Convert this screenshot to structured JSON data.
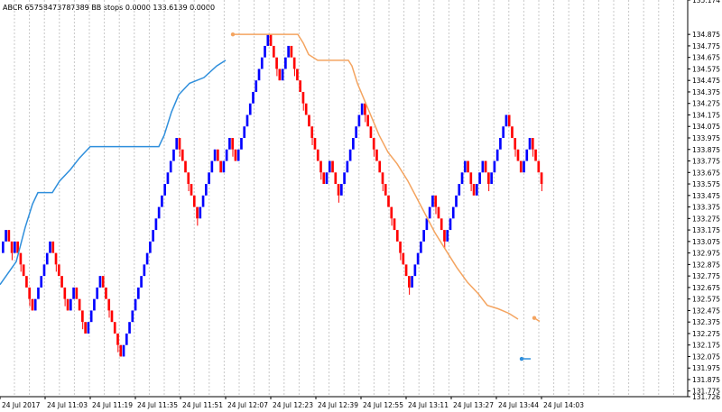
{
  "header": {
    "symbol": "ABCR 65758473787389",
    "indicator": "BB stops 0.0000 133.6139 0.0000"
  },
  "colors": {
    "background": "#ffffff",
    "grid": "#c8c8c8",
    "bull": "#0000ff",
    "bear": "#ff0000",
    "stop_up": "#2f8fdc",
    "stop_down": "#f4a460",
    "axis_text": "#000000"
  },
  "chart_data": {
    "type": "line",
    "title": "",
    "ylim": [
      131.726,
      135.174
    ],
    "y_ticks": [
      "135.174",
      "134.875",
      "134.775",
      "134.675",
      "134.575",
      "134.475",
      "134.375",
      "134.275",
      "134.175",
      "134.075",
      "133.975",
      "133.875",
      "133.775",
      "133.675",
      "133.575",
      "133.475",
      "133.375",
      "133.275",
      "133.175",
      "133.075",
      "132.975",
      "132.875",
      "132.775",
      "132.675",
      "132.575",
      "132.475",
      "132.375",
      "132.275",
      "132.175",
      "132.075",
      "131.975",
      "131.875",
      "131.775",
      "131.726"
    ],
    "x_ticks": [
      "24 Jul 2017",
      "24 Jul 11:03",
      "24 Jul 11:19",
      "24 Jul 11:35",
      "24 Jul 11:51",
      "24 Jul 12:07",
      "24 Jul 12:23",
      "24 Jul 12:39",
      "24 Jul 12:55",
      "24 Jul 13:11",
      "24 Jul 13:27",
      "24 Jul 13:44",
      "24 Jul 14:03"
    ],
    "renko_closes": [
      133.075,
      133.175,
      133.075,
      132.975,
      133.075,
      132.975,
      132.875,
      132.775,
      132.675,
      132.575,
      132.475,
      132.575,
      132.675,
      132.775,
      132.875,
      132.975,
      133.075,
      132.975,
      132.875,
      132.775,
      132.675,
      132.575,
      132.475,
      132.575,
      132.675,
      132.575,
      132.475,
      132.375,
      132.275,
      132.375,
      132.475,
      132.575,
      132.675,
      132.775,
      132.675,
      132.575,
      132.475,
      132.375,
      132.275,
      132.175,
      132.075,
      132.175,
      132.275,
      132.375,
      132.475,
      132.575,
      132.675,
      132.775,
      132.875,
      132.975,
      133.075,
      133.175,
      133.275,
      133.375,
      133.475,
      133.575,
      133.675,
      133.775,
      133.875,
      133.975,
      133.875,
      133.775,
      133.675,
      133.575,
      133.475,
      133.375,
      133.275,
      133.375,
      133.475,
      133.575,
      133.675,
      133.775,
      133.875,
      133.775,
      133.675,
      133.775,
      133.875,
      133.975,
      133.875,
      133.775,
      133.875,
      133.975,
      134.075,
      134.175,
      134.275,
      134.375,
      134.475,
      134.575,
      134.675,
      134.775,
      134.875,
      134.775,
      134.675,
      134.575,
      134.475,
      134.575,
      134.675,
      134.775,
      134.675,
      134.575,
      134.475,
      134.375,
      134.275,
      134.175,
      134.075,
      133.975,
      133.875,
      133.775,
      133.675,
      133.575,
      133.675,
      133.775,
      133.675,
      133.575,
      133.475,
      133.575,
      133.675,
      133.775,
      133.875,
      133.975,
      134.075,
      134.175,
      134.275,
      134.175,
      134.075,
      133.975,
      133.875,
      133.775,
      133.675,
      133.575,
      133.475,
      133.375,
      133.275,
      133.175,
      133.075,
      132.975,
      132.875,
      132.775,
      132.675,
      132.775,
      132.875,
      132.975,
      133.075,
      133.175,
      133.275,
      133.375,
      133.475,
      133.375,
      133.275,
      133.175,
      133.075,
      133.175,
      133.275,
      133.375,
      133.475,
      133.575,
      133.675,
      133.775,
      133.675,
      133.575,
      133.475,
      133.575,
      133.675,
      133.775,
      133.675,
      133.575,
      133.675,
      133.775,
      133.875,
      133.975,
      134.075,
      134.175,
      134.075,
      133.975,
      133.875,
      133.775,
      133.675,
      133.775,
      133.875,
      133.975,
      133.875,
      133.775,
      133.675,
      133.575
    ],
    "series": [
      {
        "name": "",
        "kind": "stop_up",
        "values": [
          [
            0,
            132.7
          ],
          [
            18,
            132.9
          ],
          [
            28,
            133.2
          ],
          [
            36,
            133.4
          ],
          [
            42,
            133.5
          ],
          [
            58,
            133.5
          ],
          [
            66,
            133.6
          ],
          [
            78,
            133.7
          ],
          [
            88,
            133.8
          ],
          [
            100,
            133.9
          ],
          [
            110,
            133.9
          ],
          [
            140,
            133.9
          ],
          [
            176,
            133.9
          ],
          [
            182,
            134.0
          ],
          [
            190,
            134.2
          ],
          [
            198,
            134.35
          ],
          [
            210,
            134.45
          ],
          [
            226,
            134.5
          ],
          [
            240,
            134.6
          ],
          [
            250,
            134.65
          ]
        ]
      },
      {
        "name": "",
        "kind": "stop_down",
        "values": [
          [
            258,
            134.875
          ],
          [
            330,
            134.875
          ],
          [
            336,
            134.8
          ],
          [
            342,
            134.7
          ],
          [
            352,
            134.65
          ],
          [
            386,
            134.65
          ],
          [
            390,
            134.6
          ],
          [
            396,
            134.45
          ],
          [
            404,
            134.3
          ],
          [
            412,
            134.15
          ],
          [
            420,
            134.0
          ],
          [
            430,
            133.85
          ],
          [
            440,
            133.75
          ],
          [
            452,
            133.6
          ],
          [
            462,
            133.45
          ],
          [
            472,
            133.3
          ],
          [
            482,
            133.15
          ],
          [
            494,
            133.0
          ],
          [
            506,
            132.85
          ],
          [
            518,
            132.72
          ],
          [
            530,
            132.62
          ],
          [
            540,
            132.52
          ],
          [
            552,
            132.49
          ],
          [
            564,
            132.45
          ],
          [
            574,
            132.4
          ]
        ]
      },
      {
        "name": "",
        "kind": "stop_down_dot",
        "values": [
          [
            592,
            132.41
          ],
          [
            598,
            132.38
          ]
        ]
      },
      {
        "name": "",
        "kind": "stop_up_dot",
        "values": [
          [
            578,
            132.055
          ],
          [
            588,
            132.055
          ]
        ]
      }
    ]
  }
}
